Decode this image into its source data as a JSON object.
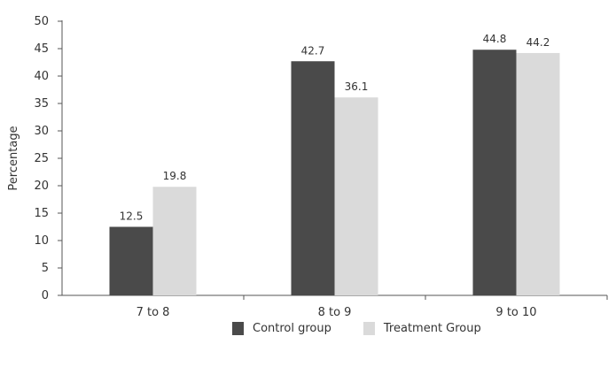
{
  "chart_data": {
    "type": "bar",
    "categories": [
      "7 to 8",
      "8 to 9",
      "9 to 10"
    ],
    "series": [
      {
        "name": "Control group",
        "values": [
          12.5,
          42.7,
          44.8
        ],
        "color": "#4a4a4a"
      },
      {
        "name": "Treatment Group",
        "values": [
          19.8,
          36.1,
          44.2
        ],
        "color": "#dadada"
      }
    ],
    "data_labels": [
      [
        "12.5",
        "42.7",
        "44.8"
      ],
      [
        "19.8",
        "36.1",
        "44.2"
      ]
    ],
    "yticks": [
      "0",
      "5",
      "10",
      "15",
      "20",
      "25",
      "30",
      "35",
      "40",
      "45",
      "50"
    ],
    "ylim": [
      0,
      50
    ],
    "ylabel": "Percentage",
    "xlabel": "",
    "title": "",
    "grid": false,
    "legend_position": "bottom-center"
  }
}
